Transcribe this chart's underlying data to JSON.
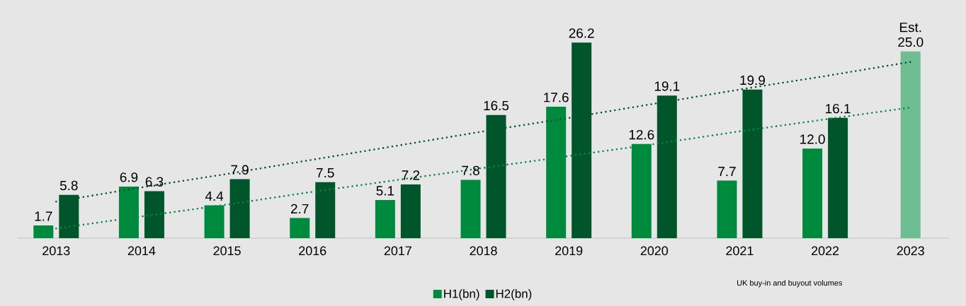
{
  "chart_data": {
    "type": "bar",
    "categories": [
      "2013",
      "2014",
      "2015",
      "2016",
      "2017",
      "2018",
      "2019",
      "2020",
      "2021",
      "2022",
      "2023"
    ],
    "series": [
      {
        "name": "H1(bn)",
        "color": "#008a3e",
        "values": [
          1.7,
          6.9,
          4.4,
          2.7,
          5.1,
          7.8,
          17.6,
          12.6,
          7.7,
          12.0,
          null
        ],
        "value_labels": [
          "1.7",
          "6.9",
          "4.4",
          "2.7",
          "5.1",
          "7.8",
          "17.6",
          "12.6",
          "7.7",
          "12.0",
          null
        ]
      },
      {
        "name": "H2(bn)",
        "color": "#00552a",
        "values": [
          5.8,
          6.3,
          7.9,
          7.5,
          7.2,
          16.5,
          26.2,
          19.1,
          19.9,
          16.1,
          null
        ],
        "value_labels": [
          "5.8",
          "6.3",
          "7.9",
          "7.5",
          "7.2",
          "16.5",
          "26.2",
          "19.1",
          "19.9",
          "16.1",
          null
        ]
      },
      {
        "color": "#6fbd92",
        "values": [
          null,
          null,
          null,
          null,
          null,
          null,
          null,
          null,
          null,
          null,
          25.0
        ],
        "value_labels": [
          null,
          null,
          null,
          null,
          null,
          null,
          null,
          null,
          null,
          null,
          "Est. 25.0"
        ]
      },
      {
        "type": "line",
        "color": "#008a3e",
        "line_style": "dotted",
        "values": [
          1.3,
          2.9,
          4.5,
          6.2,
          7.8,
          9.4,
          11.0,
          12.6,
          14.3,
          15.9,
          17.5
        ]
      },
      {
        "type": "line",
        "color": "#00552a",
        "line_style": "dotted",
        "values": [
          4.9,
          6.8,
          8.6,
          10.5,
          12.4,
          14.3,
          16.1,
          18.0,
          19.9,
          21.7,
          23.6
        ]
      }
    ],
    "legend": "bottom",
    "annotations": [
      "UK buy-in and buyout volumes"
    ]
  }
}
